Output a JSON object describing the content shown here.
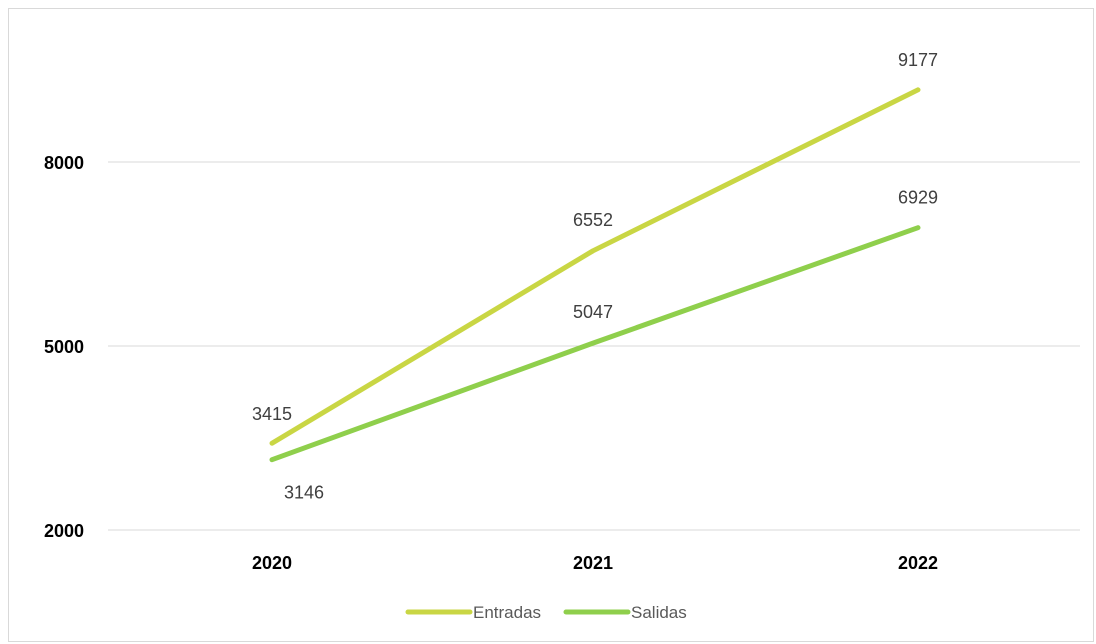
{
  "chart_data": {
    "type": "line",
    "title": "",
    "xlabel": "",
    "ylabel": "",
    "categories": [
      "2020",
      "2021",
      "2022"
    ],
    "ylim": [
      2000,
      9500
    ],
    "yticks": [
      2000,
      5000,
      8000
    ],
    "grid": true,
    "legend_position": "bottom",
    "series": [
      {
        "name": "Entradas",
        "values": [
          3415,
          6552,
          9177
        ],
        "color": "#c9d644"
      },
      {
        "name": "Salidas",
        "values": [
          3146,
          5047,
          6929
        ],
        "color": "#8fcf4c"
      }
    ]
  }
}
